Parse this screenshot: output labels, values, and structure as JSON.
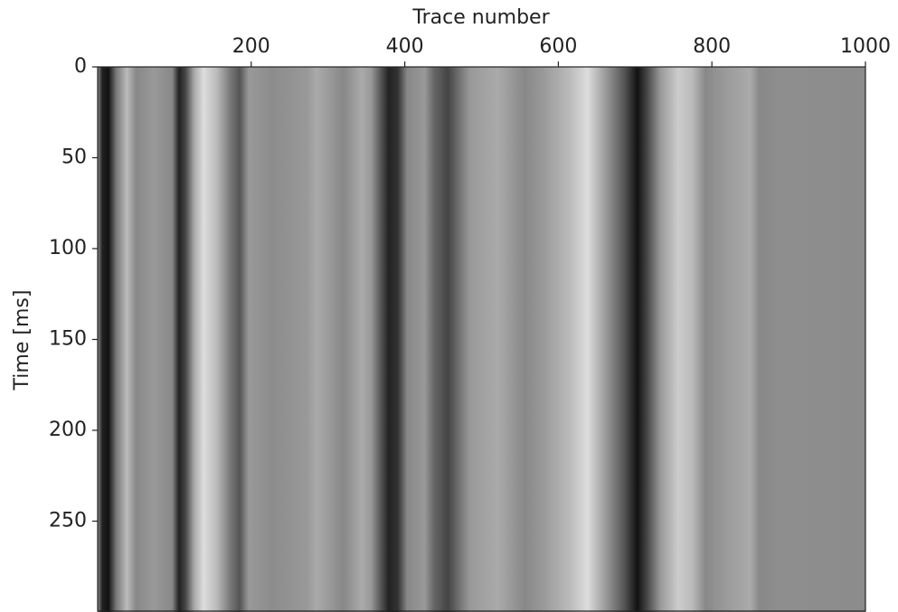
{
  "chart_data": {
    "type": "image",
    "xlabel": "Trace number",
    "ylabel": "Time [ms]",
    "xlim": [
      0,
      1000
    ],
    "xticks": [
      200,
      400,
      600,
      800,
      1000
    ],
    "ylim": [
      0,
      300
    ],
    "yticks": [
      0,
      50,
      100,
      150,
      200,
      250
    ],
    "y_inverted": true,
    "x_axis_position": "top",
    "colormap": "gray"
  }
}
